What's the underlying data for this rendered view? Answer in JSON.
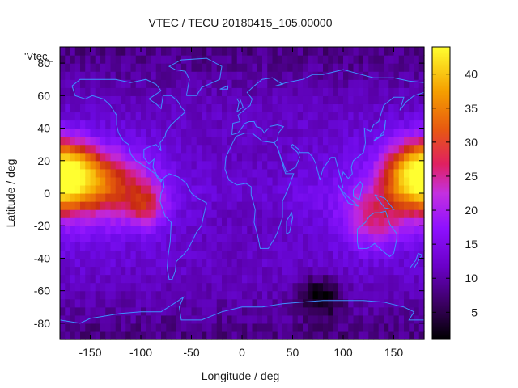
{
  "chart_data": {
    "type": "heatmap",
    "title": "VTEC / TECU 20180415_105.00000",
    "key_label": "'Vtec_",
    "xlabel": "Longitude / deg",
    "ylabel": "Latitude / deg",
    "xlim": [
      -180,
      180
    ],
    "ylim": [
      -90,
      90
    ],
    "x_ticks": [
      -150,
      -100,
      -50,
      0,
      50,
      100,
      150
    ],
    "y_ticks": [
      -80,
      -60,
      -40,
      -20,
      0,
      20,
      40,
      60,
      80
    ],
    "colorbar": {
      "min": 1,
      "max": 44,
      "ticks": [
        5,
        10,
        15,
        20,
        25,
        30,
        35,
        40
      ]
    },
    "grid": false,
    "grid_step_deg": 5,
    "features": [
      {
        "lon": -172,
        "lat": 12,
        "amp": 24,
        "slon": 22,
        "slat": 12
      },
      {
        "lon": -130,
        "lat": 5,
        "amp": 12,
        "slon": 28,
        "slat": 14
      },
      {
        "lon": -95,
        "lat": -8,
        "amp": 9,
        "slon": 12,
        "slat": 9
      },
      {
        "lon": 172,
        "lat": 10,
        "amp": 20,
        "slon": 22,
        "slat": 14
      },
      {
        "lon": 130,
        "lat": -15,
        "amp": 9,
        "slon": 20,
        "slat": 12
      },
      {
        "lon": 0,
        "lat": 0,
        "amp": -4,
        "slon": 70,
        "slat": 25
      },
      {
        "lon": 78,
        "lat": -63,
        "amp": -6,
        "slon": 15,
        "slat": 8
      }
    ],
    "base": {
      "equator": 12,
      "mid": 9,
      "polar": 5
    }
  },
  "colors": {
    "frame": "#000000",
    "coastline": "#3f8fff"
  }
}
